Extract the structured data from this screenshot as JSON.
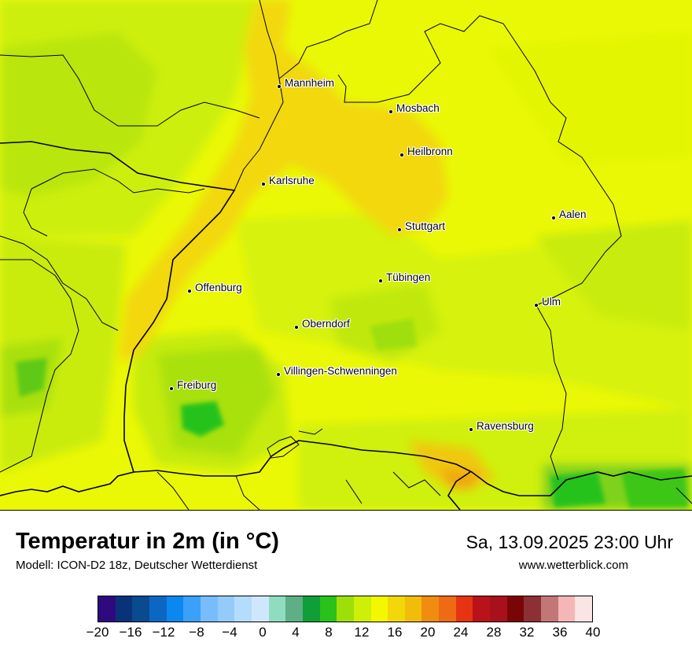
{
  "map": {
    "cities": [
      {
        "name": "Mannheim"
      },
      {
        "name": "Mosbach"
      },
      {
        "name": "Heilbronn"
      },
      {
        "name": "Karlsruhe"
      },
      {
        "name": "Stuttgart"
      },
      {
        "name": "Aalen"
      },
      {
        "name": "Tübingen"
      },
      {
        "name": "Offenburg"
      },
      {
        "name": "Ulm"
      },
      {
        "name": "Oberndorf"
      },
      {
        "name": "Villingen-Schwenningen"
      },
      {
        "name": "Freiburg"
      },
      {
        "name": "Ravensburg"
      }
    ]
  },
  "header": {
    "title": "Temperatur in 2m (in °C)",
    "model": "Modell: ICON-D2 18z, Deutscher Wetterdienst",
    "datetime": "Sa, 13.09.2025 23:00 Uhr",
    "website": "www.wetterblick.com"
  },
  "legend": {
    "colors": [
      "#2e0a7e",
      "#0a3278",
      "#0a4a8f",
      "#0b67c2",
      "#0b87f0",
      "#3aa0fa",
      "#78bcfb",
      "#94cbfb",
      "#b4dcfd",
      "#cfe7fd",
      "#90dcc0",
      "#5eae86",
      "#0f9e38",
      "#28c21a",
      "#9edf0a",
      "#cdef08",
      "#f3f801",
      "#f2d808",
      "#f2bc0a",
      "#f08c10",
      "#ef6a14",
      "#e63412",
      "#b9121a",
      "#a8101c",
      "#7a0507",
      "#8c3034",
      "#c27676",
      "#f4b6b6",
      "#fbe4e4"
    ],
    "ticks": [
      "−20",
      "−16",
      "−12",
      "−8",
      "−4",
      "0",
      "4",
      "8",
      "12",
      "16",
      "20",
      "24",
      "28",
      "32",
      "36",
      "40"
    ]
  }
}
